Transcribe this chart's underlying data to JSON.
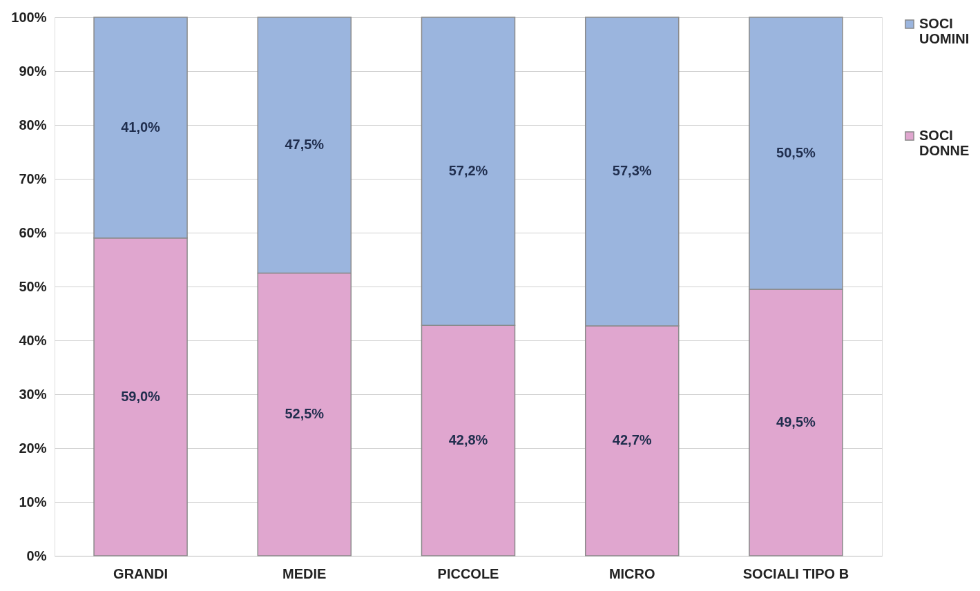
{
  "chart_data": {
    "type": "bar",
    "stacked": true,
    "categories": [
      "GRANDI",
      "MEDIE",
      "PICCOLE",
      "MICRO",
      "SOCIALI TIPO B"
    ],
    "series": [
      {
        "name": "SOCI DONNE",
        "color": "#e0a6cf",
        "values": [
          59.0,
          52.5,
          42.8,
          42.7,
          49.5
        ],
        "value_labels": [
          "59,0%",
          "52,5%",
          "42,8%",
          "42,7%",
          "49,5%"
        ]
      },
      {
        "name": "SOCI UOMINI",
        "color": "#9bb5de",
        "values": [
          41.0,
          47.5,
          57.2,
          57.3,
          50.5
        ],
        "value_labels": [
          "41,0%",
          "47,5%",
          "57,2%",
          "57,3%",
          "50,5%"
        ]
      }
    ],
    "ylim": [
      0,
      100
    ],
    "yticks": [
      {
        "value": 0,
        "label": "0%"
      },
      {
        "value": 10,
        "label": "10%"
      },
      {
        "value": 20,
        "label": "20%"
      },
      {
        "value": 30,
        "label": "30%"
      },
      {
        "value": 40,
        "label": "40%"
      },
      {
        "value": 50,
        "label": "50%"
      },
      {
        "value": 60,
        "label": "60%"
      },
      {
        "value": 70,
        "label": "70%"
      },
      {
        "value": 80,
        "label": "80%"
      },
      {
        "value": 90,
        "label": "90%"
      },
      {
        "value": 100,
        "label": "100%"
      }
    ],
    "grid": "y",
    "legend": "right"
  }
}
